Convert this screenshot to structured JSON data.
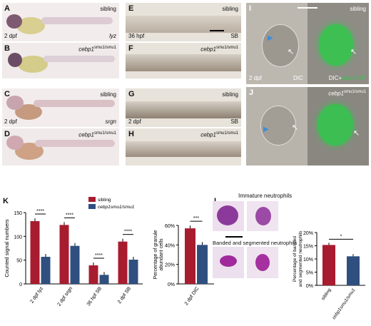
{
  "panels": {
    "A": {
      "letter": "A",
      "label": "sibling",
      "stage": "2 dpf",
      "gene": "lyz"
    },
    "B": {
      "letter": "B",
      "label": "cebp1",
      "sup": "smu1/smu1"
    },
    "C": {
      "letter": "C",
      "label": "sibling",
      "stage": "2 dpf",
      "gene": "srgn"
    },
    "D": {
      "letter": "D",
      "label": "cebp1",
      "sup": "smu1/smu1"
    },
    "E": {
      "letter": "E",
      "label": "sibling",
      "stage": "36 hpf",
      "gene": "SB"
    },
    "F": {
      "letter": "F",
      "label": "cebp1",
      "sup": "smu1/smu1"
    },
    "G": {
      "letter": "G",
      "label": "sibling",
      "stage": "2 dpf",
      "gene": "SB"
    },
    "H": {
      "letter": "H",
      "label": "cebp1",
      "sup": "smu1/smu1"
    },
    "I": {
      "letter": "I",
      "label": "sibling",
      "stage": "2 dpf",
      "dic": "DIC",
      "merge_prefix": "DIC+",
      "merge_suffix": "mpx:GFP"
    },
    "J": {
      "letter": "J",
      "label": "cebp1",
      "sup": "smu1/smu1"
    },
    "K": {
      "letter": "K"
    },
    "L": {
      "letter": "L",
      "immature": "Immature neutrophils",
      "banded": "Banded and segmented neutrophils"
    }
  },
  "colors": {
    "sibling": "#a81c2f",
    "mutant": "#2f4f7f",
    "gfp": "#2fc84a"
  },
  "chart_data": [
    {
      "type": "bar",
      "ylabel": "Counted signal numbers",
      "ylim": [
        0,
        150
      ],
      "yticks": [
        0,
        50,
        100,
        150
      ],
      "categories": [
        "2 dpf lyz",
        "2 dpf srgn",
        "36 hpf SB",
        "2 dpf SB"
      ],
      "series": [
        {
          "name": "sibling",
          "values": [
            132,
            124,
            39,
            89
          ]
        },
        {
          "name": "cebp1smu1/smu1",
          "values": [
            57,
            80,
            19,
            51
          ]
        }
      ],
      "significance": [
        "****",
        "****",
        "****",
        "****"
      ],
      "legend": [
        "sibling",
        "cebp1smu1/smu1"
      ],
      "legend_position": "top-right"
    },
    {
      "type": "bar",
      "ylabel": "Percentage of granule abundant cells",
      "ylim": [
        0,
        60
      ],
      "yticks": [
        "0%",
        "20%",
        "40%",
        "60%"
      ],
      "categories": [
        "2 dpf DIC"
      ],
      "series": [
        {
          "name": "sibling",
          "values": [
            57
          ]
        },
        {
          "name": "cebp1smu1/smu1",
          "values": [
            40
          ]
        }
      ],
      "significance": [
        "***"
      ]
    },
    {
      "type": "bar",
      "ylabel": "Percentage of banded and segmented neutrophils",
      "ylim": [
        0,
        20
      ],
      "yticks": [
        "0%",
        "5%",
        "10%",
        "15%",
        "20%"
      ],
      "categories": [
        "sibling",
        "cebp1smu1/smu1"
      ],
      "values": [
        15.3,
        11.0
      ],
      "significance": [
        "*"
      ]
    }
  ]
}
